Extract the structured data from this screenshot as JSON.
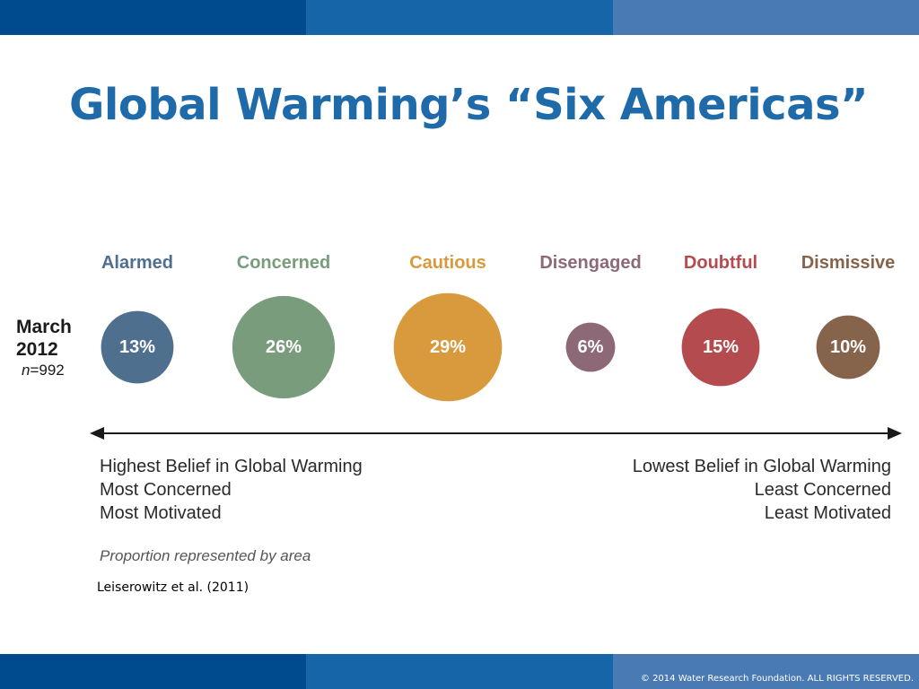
{
  "theme": {
    "band_colors": [
      "#004b8d",
      "#1565a8",
      "#4a7ab4"
    ],
    "title_color": "#1f6aa8",
    "axis_color": "#1a1a1a"
  },
  "slide": {
    "title": "Global Warming’s “Six Americas”",
    "citation": "Leiserowitz et al. (2011)",
    "copyright": "© 2014 Water Research Foundation. ALL RIGHTS RESERVED."
  },
  "chart_data": {
    "type": "bubble",
    "survey": {
      "label_line1": "March",
      "label_line2": "2012",
      "n_symbol": "n",
      "n_value": "=992"
    },
    "categories": [
      "Alarmed",
      "Concerned",
      "Cautious",
      "Disengaged",
      "Doubtful",
      "Dismissive"
    ],
    "values": [
      13,
      26,
      29,
      6,
      15,
      10
    ],
    "value_labels": [
      "13%",
      "26%",
      "29%",
      "6%",
      "15%",
      "10%"
    ],
    "colors": [
      "#4f6f8f",
      "#799c7c",
      "#d99a3e",
      "#8d6977",
      "#b44b4f",
      "#86634b"
    ],
    "axis": {
      "left": {
        "lines": [
          "Highest Belief in Global Warming",
          "Most Concerned",
          "Most Motivated"
        ]
      },
      "right": {
        "lines": [
          "Lowest Belief in Global Warming",
          "Least Concerned",
          "Least Motivated"
        ]
      }
    },
    "note": "Proportion represented by area"
  }
}
